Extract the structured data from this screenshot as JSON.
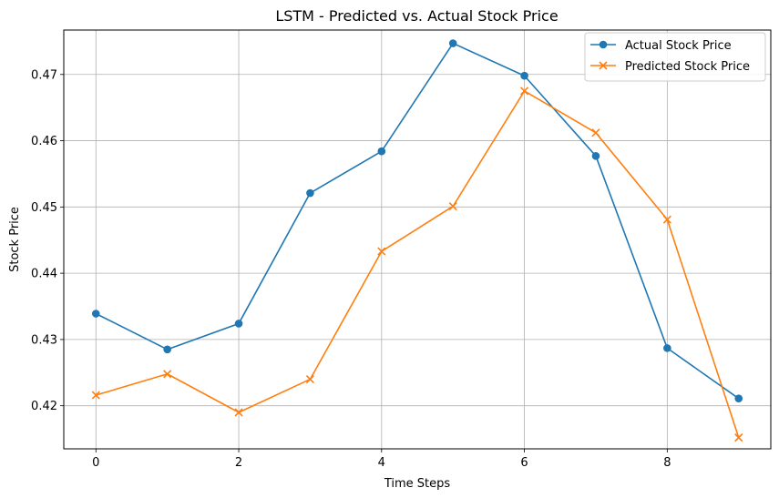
{
  "chart_data": {
    "type": "line",
    "title": "LSTM - Predicted vs. Actual Stock Price",
    "xlabel": "Time Steps",
    "ylabel": "Stock Price",
    "xlim": [
      -0.45,
      9.45
    ],
    "ylim": [
      0.4135,
      0.4767
    ],
    "xticks": [
      0,
      2,
      4,
      6,
      8
    ],
    "yticks": [
      0.42,
      0.43,
      0.44,
      0.45,
      0.46,
      0.47
    ],
    "grid": true,
    "legend_position": "top-right",
    "x": [
      0,
      1,
      2,
      3,
      4,
      5,
      6,
      7,
      8,
      9
    ],
    "series": [
      {
        "name": "Actual Stock Price",
        "color": "#1f77b4",
        "marker": "circle",
        "values": [
          0.4339,
          0.4285,
          0.4324,
          0.4521,
          0.4584,
          0.4747,
          0.4698,
          0.4577,
          0.4287,
          0.4211
        ]
      },
      {
        "name": "Predicted Stock Price",
        "color": "#ff7f0e",
        "marker": "x",
        "values": [
          0.4216,
          0.4248,
          0.419,
          0.424,
          0.4433,
          0.4501,
          0.4675,
          0.4612,
          0.4481,
          0.4152
        ]
      }
    ]
  }
}
